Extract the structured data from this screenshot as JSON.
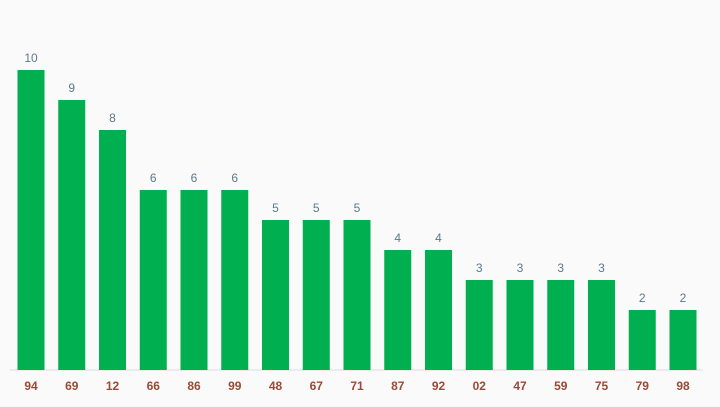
{
  "chart_data": {
    "type": "bar",
    "categories": [
      "94",
      "69",
      "12",
      "66",
      "86",
      "99",
      "48",
      "67",
      "71",
      "87",
      "92",
      "02",
      "47",
      "59",
      "75",
      "79",
      "98"
    ],
    "values": [
      10,
      9,
      8,
      6,
      6,
      6,
      5,
      5,
      5,
      4,
      4,
      3,
      3,
      3,
      3,
      2,
      2
    ],
    "title": "",
    "xlabel": "",
    "ylabel": "",
    "ylim": [
      0,
      10
    ],
    "grid": false,
    "legend": "none",
    "bar_color": "#00b050",
    "value_label_color": "#5a7a8c",
    "category_label_color": "#9a4a35"
  }
}
